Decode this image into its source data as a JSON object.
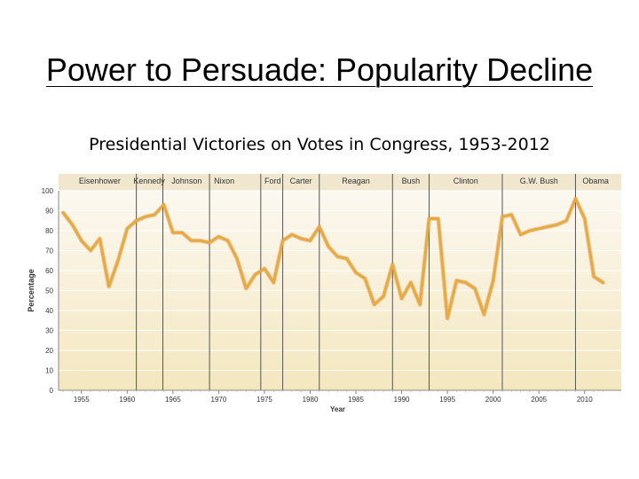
{
  "slide": {
    "title": "Power to Persuade: Popularity Decline"
  },
  "chart_data": {
    "type": "line",
    "title": "Presidential Victories on Votes in Congress, 1953-2012",
    "xlabel": "Year",
    "ylabel": "Percentage",
    "xlim": [
      1952.5,
      2014
    ],
    "ylim": [
      0,
      100
    ],
    "xticks": [
      1955,
      1960,
      1965,
      1970,
      1975,
      1980,
      1985,
      1990,
      1995,
      2000,
      2005,
      2010
    ],
    "yticks": [
      0,
      10,
      20,
      30,
      40,
      50,
      60,
      70,
      80,
      90,
      100
    ],
    "grid": true,
    "colors": {
      "line": "#e8a940",
      "band": "#f1e7cf",
      "divider": "#555555",
      "background_top": "#fbf8f0",
      "background_bottom": "#f4e7bf"
    },
    "presidents": [
      {
        "name": "Eisenhower",
        "start": 1953
      },
      {
        "name": "Kennedy",
        "start": 1961
      },
      {
        "name": "Johnson",
        "start": 1963.9
      },
      {
        "name": "Nixon",
        "start": 1969
      },
      {
        "name": "Ford",
        "start": 1974.6
      },
      {
        "name": "Carter",
        "start": 1977
      },
      {
        "name": "Reagan",
        "start": 1981
      },
      {
        "name": "Bush",
        "start": 1989
      },
      {
        "name": "Clinton",
        "start": 1993
      },
      {
        "name": "G.W. Bush",
        "start": 2001
      },
      {
        "name": "Obama",
        "start": 2009
      }
    ],
    "series": [
      {
        "x": [
          1953,
          1954,
          1955,
          1956,
          1957,
          1958,
          1959,
          1960,
          1961,
          1962,
          1963,
          1964,
          1965,
          1966,
          1967,
          1968,
          1969,
          1970,
          1971,
          1972,
          1973,
          1974,
          1975,
          1976,
          1977,
          1978,
          1979,
          1980,
          1981,
          1982,
          1983,
          1984,
          1985,
          1986,
          1987,
          1988,
          1989,
          1990,
          1991,
          1992,
          1993,
          1994,
          1995,
          1996,
          1997,
          1998,
          1999,
          2000,
          2001,
          2002,
          2003,
          2004,
          2005,
          2006,
          2007,
          2008,
          2009,
          2010,
          2011,
          2012
        ],
        "y": [
          89,
          83,
          75,
          70,
          76,
          52,
          65,
          81,
          85,
          87,
          88,
          93,
          79,
          79,
          75,
          75,
          74,
          77,
          75,
          66,
          51,
          58,
          61,
          54,
          75,
          78,
          76,
          75,
          82,
          72,
          67,
          66,
          59,
          56,
          43,
          47,
          63,
          46,
          54,
          43,
          86,
          86,
          36,
          55,
          54,
          51,
          38,
          55,
          87,
          88,
          78,
          80,
          81,
          82,
          83,
          85,
          96,
          86,
          57,
          54
        ]
      }
    ]
  }
}
